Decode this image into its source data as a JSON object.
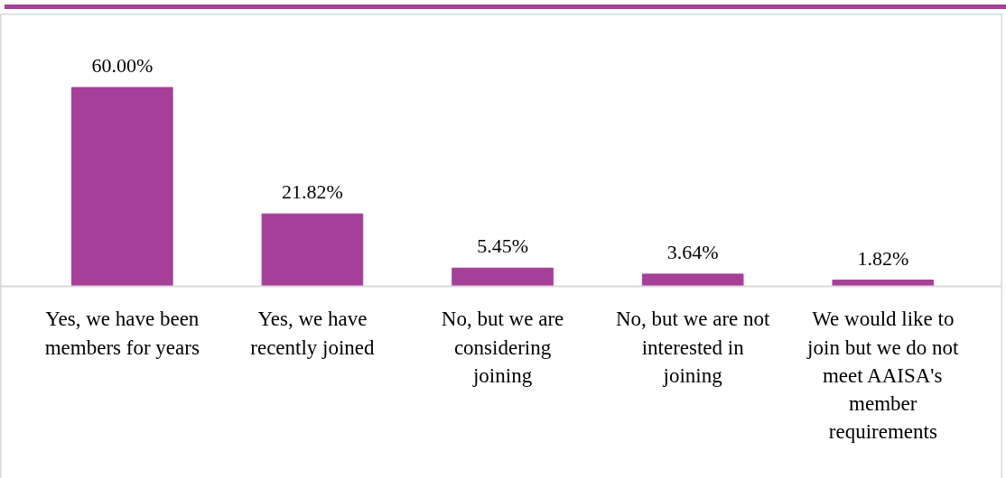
{
  "chart_data": {
    "type": "bar",
    "relative": false,
    "categories": [
      "Yes, we have been\nmembers for years",
      "Yes, we have\nrecently joined",
      "No, but we are\nconsidering\njoining",
      "No, but we are not\ninterested in\njoining",
      "We would like to\njoin but we do not\nmeet AAISA's\nmember\nrequirements"
    ],
    "values": [
      60.0,
      21.82,
      5.45,
      3.64,
      1.82
    ],
    "value_labels": [
      "60.00%",
      "21.82%",
      "5.45%",
      "3.64%",
      "1.82%"
    ],
    "color": "#a63f97",
    "grid": false
  }
}
